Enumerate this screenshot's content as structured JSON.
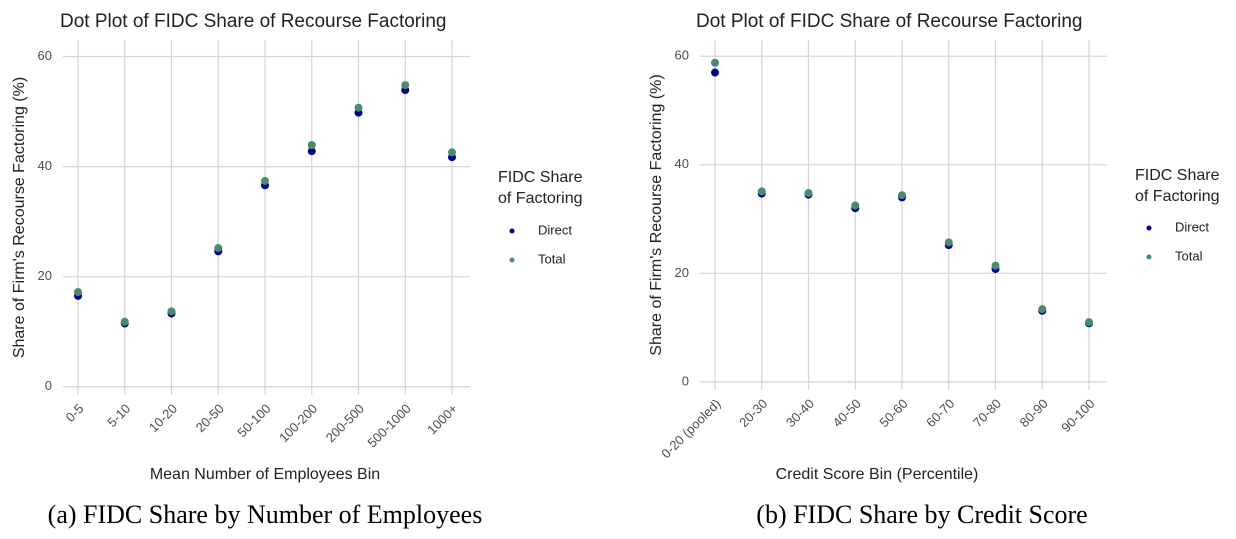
{
  "chart_data": [
    {
      "type": "scatter",
      "title": "Dot Plot of FIDC Share of Recourse Factoring",
      "x_label": "Mean Number of Employees Bin",
      "y_label": "Share of Firm's Recourse Factoring (%)",
      "categories": [
        "0-5",
        "5-10",
        "10-20",
        "20-50",
        "50-100",
        "100-200",
        "200-500",
        "500-1000",
        "1000+"
      ],
      "series": [
        {
          "name": "Direct",
          "color": "#00008b",
          "values": [
            16.5,
            11.5,
            13.3,
            24.6,
            36.6,
            42.8,
            49.8,
            53.9,
            41.7
          ]
        },
        {
          "name": "Total",
          "color": "#4a8a6e",
          "values": [
            17.2,
            11.8,
            13.7,
            25.2,
            37.4,
            43.9,
            50.7,
            54.8,
            42.6
          ]
        }
      ],
      "legend_title": [
        "FIDC Share",
        "of Factoring"
      ],
      "legend": "right",
      "ylim": [
        -1.5,
        63
      ],
      "yticks": [
        0,
        20,
        40,
        60
      ],
      "grid": true,
      "caption": "(a) FIDC Share by Number of Employees"
    },
    {
      "type": "scatter",
      "title": "Dot Plot of FIDC Share of Recourse Factoring",
      "x_label": "Credit Score Bin (Percentile)",
      "y_label": "Share of Firm's Recourse Factoring (%)",
      "categories": [
        "0-20 (pooled)",
        "20-30",
        "30-40",
        "40-50",
        "50-60",
        "60-70",
        "70-80",
        "80-90",
        "90-100"
      ],
      "series": [
        {
          "name": "Direct",
          "color": "#00008b",
          "values": [
            57.0,
            34.7,
            34.5,
            32.0,
            34.0,
            25.2,
            20.8,
            13.1,
            10.8
          ]
        },
        {
          "name": "Total",
          "color": "#4a8a6e",
          "values": [
            58.8,
            35.1,
            34.8,
            32.5,
            34.4,
            25.7,
            21.4,
            13.4,
            11.0
          ]
        }
      ],
      "legend_title": [
        "FIDC Share",
        "of Factoring"
      ],
      "legend": "right",
      "ylim": [
        -1.5,
        63
      ],
      "yticks": [
        0,
        20,
        40,
        60
      ],
      "grid": true,
      "caption": "(b) FIDC Share by Credit Score"
    }
  ]
}
